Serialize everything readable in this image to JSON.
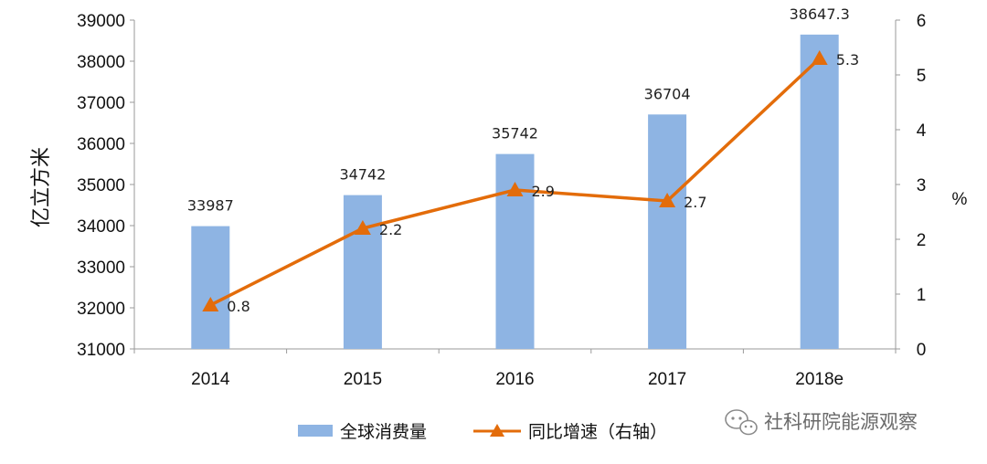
{
  "chart_data": {
    "type": "bar",
    "categories": [
      "2014",
      "2015",
      "2016",
      "2017",
      "2018e"
    ],
    "series": [
      {
        "name": "全球消费量",
        "type": "bar",
        "axis": "left",
        "values": [
          33987,
          34742,
          35742,
          36704,
          38647.3
        ],
        "labels": [
          "33987",
          "34742",
          "35742",
          "36704",
          "38647.3"
        ],
        "color": "#8EB4E3"
      },
      {
        "name": "同比增速（右轴）",
        "type": "line",
        "axis": "right",
        "values": [
          0.8,
          2.2,
          2.9,
          2.7,
          5.3
        ],
        "labels": [
          "0.8",
          "2.2",
          "2.9",
          "2.7",
          "5.3"
        ],
        "color": "#E36C0A"
      }
    ],
    "ylabel": "亿立方米",
    "y2label": "%",
    "ylim": [
      31000,
      39000
    ],
    "y_ticks": [
      "31000",
      "32000",
      "33000",
      "34000",
      "35000",
      "36000",
      "37000",
      "38000",
      "39000"
    ],
    "y2lim": [
      0,
      6
    ],
    "y2_ticks": [
      "0",
      "1",
      "2",
      "3",
      "4",
      "5",
      "6"
    ],
    "grid": false,
    "legend_position": "bottom-center"
  },
  "watermark": {
    "icon": "wechat-icon",
    "text": "社科研院能源观察"
  }
}
